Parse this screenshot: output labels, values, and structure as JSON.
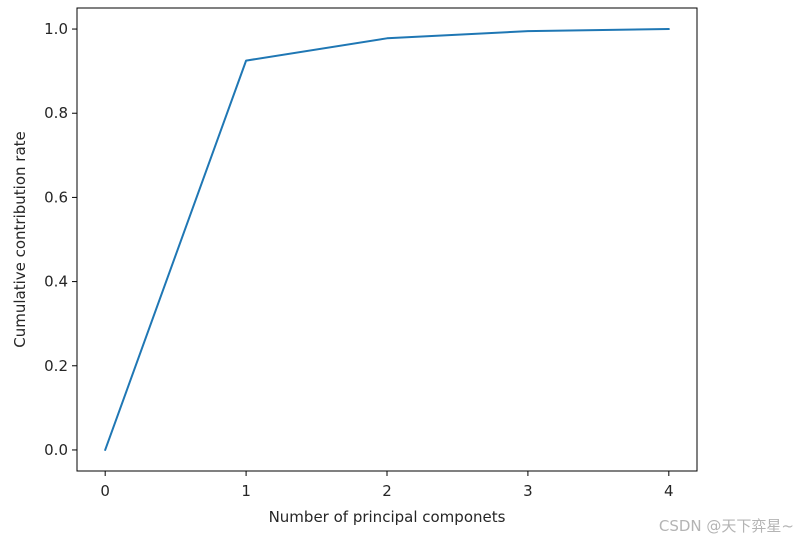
{
  "chart_data": {
    "type": "line",
    "title": "",
    "xlabel": "Number of principal componets",
    "ylabel": "Cumulative contribution rate",
    "x": [
      0,
      1,
      2,
      3,
      4
    ],
    "xlim": [
      -0.2,
      4.2
    ],
    "ylim": [
      -0.05,
      1.05
    ],
    "xticks": [
      0,
      1,
      2,
      3,
      4
    ],
    "xtick_labels": [
      "0",
      "1",
      "2",
      "3",
      "4"
    ],
    "yticks": [
      0.0,
      0.2,
      0.4,
      0.6,
      0.8,
      1.0
    ],
    "ytick_labels": [
      "0.0",
      "0.2",
      "0.4",
      "0.6",
      "0.8",
      "1.0"
    ],
    "grid": false,
    "series": [
      {
        "values": [
          0.0,
          0.925,
          0.978,
          0.995,
          1.0
        ],
        "color": "#1f77b4"
      }
    ]
  },
  "watermark": "CSDN @天下弈星~"
}
